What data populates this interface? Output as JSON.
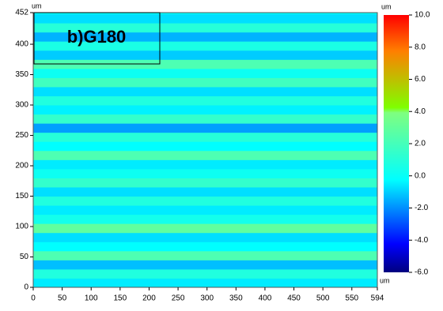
{
  "chart_data": {
    "type": "heatmap",
    "label": "b)G180",
    "x_unit": "um",
    "y_unit": "um",
    "colorbar_unit": "um",
    "xlim": [
      0,
      594
    ],
    "xticks": [
      0,
      50,
      100,
      150,
      200,
      250,
      300,
      350,
      400,
      450,
      500,
      550,
      594
    ],
    "ylim": [
      0,
      452
    ],
    "yticks": [
      0,
      50,
      100,
      150,
      200,
      250,
      300,
      350,
      400,
      452
    ],
    "y_bins": [
      0,
      15,
      30,
      45,
      60,
      75,
      90,
      105,
      120,
      135,
      150,
      165,
      180,
      195,
      210,
      225,
      240,
      255,
      270,
      285,
      300,
      315,
      330,
      345,
      360,
      375,
      390,
      405,
      420,
      435,
      450,
      452
    ],
    "values": [
      -0.3,
      0.5,
      -1.0,
      1.2,
      0.0,
      -0.5,
      1.5,
      0.3,
      -0.3,
      0.5,
      -0.5,
      0.8,
      0.2,
      -0.3,
      1.2,
      0.0,
      0.6,
      -1.5,
      0.8,
      -0.2,
      0.5,
      -0.5,
      1.0,
      0.2,
      1.2,
      -0.8,
      0.4,
      -1.2,
      0.6,
      -0.5,
      0.0
    ],
    "zlim": [
      -6,
      10
    ],
    "colormap": "jet",
    "zticks": [
      {
        "value": 10,
        "label": "10.0"
      },
      {
        "value": 8,
        "label": "8.0"
      },
      {
        "value": 6,
        "label": "6.0"
      },
      {
        "value": 4,
        "label": "4.0"
      },
      {
        "value": 2,
        "label": "2.0"
      },
      {
        "value": 0,
        "label": "0.0"
      },
      {
        "value": -2,
        "label": "-2.0"
      },
      {
        "value": -4,
        "label": "-4.0"
      },
      {
        "value": -6,
        "label": "-6.0"
      }
    ]
  }
}
